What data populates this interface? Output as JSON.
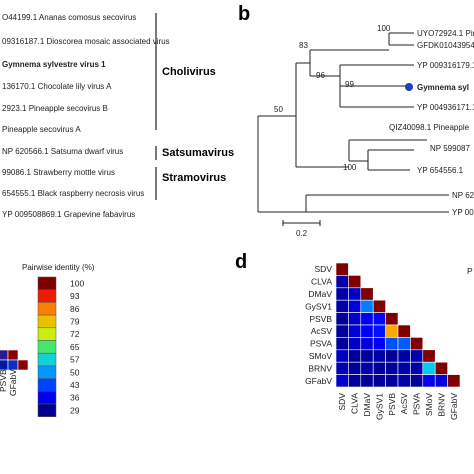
{
  "panel_a": {
    "taxa": [
      "O44199.1 Ananas comosus secovirus",
      "09316187.1 Dioscorea mosaic associated virus",
      "Gymnema sylvestre virus 1",
      "136170.1 Chocolate lily virus A",
      "2923.1 Pineapple secovirus B",
      "Pineapple secovirus A",
      "NP 620566.1 Satsuma dwarf virus",
      "99086.1 Strawberry mottle virus",
      "654555.1 Black raspberry necrosis virus",
      "YP 009508869.1 Grapevine fabavirus"
    ],
    "clades": [
      "Cholivirus",
      "Satsumavirus",
      "Stramovirus"
    ]
  },
  "panel_b": {
    "label": "b",
    "taxa": [
      "UYO72924.1 Pine",
      "GFDK01043954.",
      "YP 009316179.1",
      "Gymnema syl",
      "YP 004936171.1",
      "QIZ40098.1 Pineapple",
      "NP 599087",
      "YP 654556.1",
      "NP 62",
      "YP 00"
    ],
    "bootstrap": [
      "100",
      "83",
      "96",
      "99",
      "50",
      "100"
    ],
    "scale": "0.2"
  },
  "panel_c": {
    "legend_title": "Pairwise identity (%)",
    "legend_ticks": [
      "100",
      "93",
      "86",
      "79",
      "72",
      "65",
      "57",
      "50",
      "43",
      "36",
      "29"
    ],
    "partial_labels": [
      "PSVB",
      "GFabV"
    ]
  },
  "panel_d": {
    "label": "d",
    "right_edge_text": "P",
    "viruses": [
      "SDV",
      "CLVA",
      "DMaV",
      "GySV1",
      "PSVB",
      "AcSV",
      "PSVA",
      "SMoV",
      "BRNV",
      "GFabV"
    ]
  },
  "chart_data": {
    "type": "heatmap",
    "title": "",
    "legend_title": "Pairwise identity (%)",
    "scale_ticks": [
      100,
      93,
      86,
      79,
      72,
      65,
      57,
      50,
      43,
      36,
      29
    ],
    "rows": [
      "SDV",
      "CLVA",
      "DMaV",
      "GySV1",
      "PSVB",
      "AcSV",
      "PSVA",
      "SMoV",
      "BRNV",
      "GFabV"
    ],
    "cols": [
      "SDV",
      "CLVA",
      "DMaV",
      "GySV1",
      "PSVB",
      "AcSV",
      "PSVA",
      "SMoV",
      "BRNV",
      "GFabV"
    ],
    "values": [
      [
        100
      ],
      [
        31,
        100
      ],
      [
        31,
        33,
        100
      ],
      [
        31,
        35,
        48,
        100
      ],
      [
        30,
        33,
        36,
        38,
        100
      ],
      [
        30,
        34,
        37,
        39,
        82,
        100
      ],
      [
        30,
        33,
        35,
        37,
        44,
        45,
        100
      ],
      [
        33,
        30,
        30,
        31,
        30,
        31,
        31,
        100
      ],
      [
        32,
        30,
        31,
        30,
        30,
        31,
        31,
        55,
        100
      ],
      [
        34,
        30,
        30,
        30,
        30,
        31,
        30,
        36,
        35,
        100
      ]
    ]
  },
  "colors": {
    "tree_line": "#222222",
    "highlight_dot": "#1f3fbf"
  }
}
